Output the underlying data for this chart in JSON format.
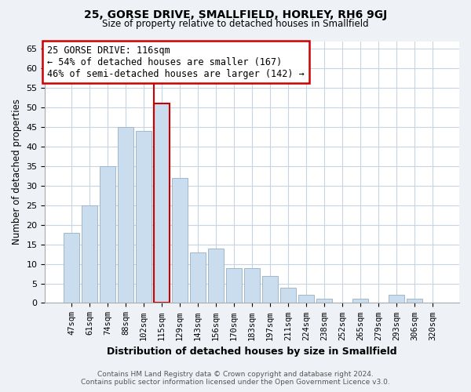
{
  "title1": "25, GORSE DRIVE, SMALLFIELD, HORLEY, RH6 9GJ",
  "title2": "Size of property relative to detached houses in Smallfield",
  "xlabel": "Distribution of detached houses by size in Smallfield",
  "ylabel": "Number of detached properties",
  "bar_labels": [
    "47sqm",
    "61sqm",
    "74sqm",
    "88sqm",
    "102sqm",
    "115sqm",
    "129sqm",
    "143sqm",
    "156sqm",
    "170sqm",
    "183sqm",
    "197sqm",
    "211sqm",
    "224sqm",
    "238sqm",
    "252sqm",
    "265sqm",
    "279sqm",
    "293sqm",
    "306sqm",
    "320sqm"
  ],
  "bar_values": [
    18,
    25,
    35,
    45,
    44,
    51,
    32,
    13,
    14,
    9,
    9,
    7,
    4,
    2,
    1,
    0,
    1,
    0,
    2,
    1,
    0
  ],
  "bar_color": "#c9ddef",
  "bar_edge_color": "#a0b8cc",
  "highlight_bar_index": 5,
  "highlight_line_color": "#cc0000",
  "annotation_line1": "25 GORSE DRIVE: 116sqm",
  "annotation_line2": "← 54% of detached houses are smaller (167)",
  "annotation_line3": "46% of semi-detached houses are larger (142) →",
  "annotation_box_color": "white",
  "annotation_box_edge_color": "#cc0000",
  "ylim": [
    0,
    67
  ],
  "yticks": [
    0,
    5,
    10,
    15,
    20,
    25,
    30,
    35,
    40,
    45,
    50,
    55,
    60,
    65
  ],
  "footer1": "Contains HM Land Registry data © Crown copyright and database right 2024.",
  "footer2": "Contains public sector information licensed under the Open Government Licence v3.0.",
  "bg_color": "#eef2f7",
  "plot_bg_color": "#ffffff",
  "grid_color": "#c8d4e0"
}
